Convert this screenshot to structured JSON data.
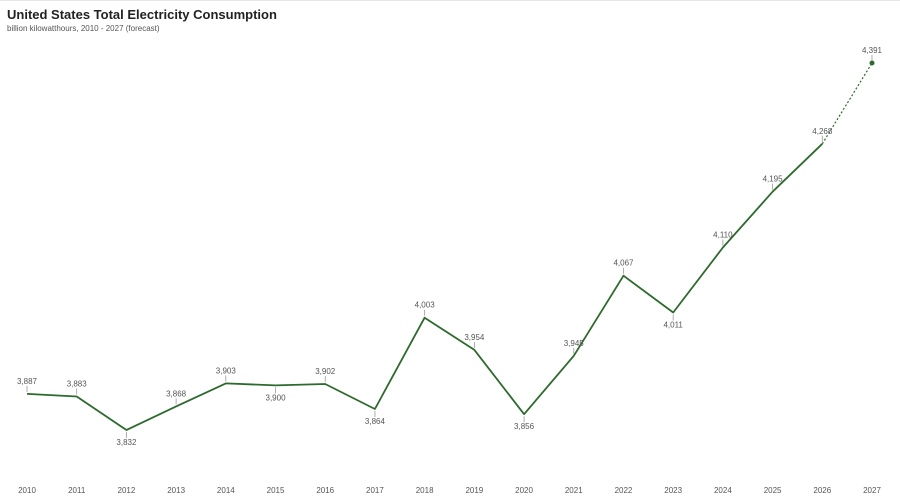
{
  "chart_data": {
    "type": "line",
    "title": "United States Total Electricity Consumption",
    "subtitle": "billion kilowatthours, 2010 - 2027 (forecast)",
    "xlabel": "",
    "ylabel": "",
    "x": [
      "2010",
      "2011",
      "2012",
      "2013",
      "2014",
      "2015",
      "2016",
      "2017",
      "2018",
      "2019",
      "2020",
      "2021",
      "2022",
      "2023",
      "2024",
      "2025",
      "2026",
      "2027"
    ],
    "values": [
      3887,
      3883,
      3832,
      3868,
      3903,
      3900,
      3902,
      3864,
      4003,
      3954,
      3856,
      3945,
      4067,
      4011,
      4110,
      4195,
      4268,
      4391
    ],
    "data_labels": [
      "3,887",
      "3,883",
      "3,832",
      "3,868",
      "3,903",
      "3,900",
      "3,902",
      "3,864",
      "4,003",
      "3,954",
      "3,856",
      "3,945",
      "4,067",
      "4,011",
      "4,110",
      "4,195",
      "4,268",
      "4,391"
    ],
    "label_position": [
      "above",
      "above",
      "below",
      "above",
      "above",
      "below",
      "above",
      "below",
      "above",
      "above",
      "below",
      "above",
      "above",
      "below",
      "above",
      "above",
      "above",
      "above"
    ],
    "forecast_from_index": 16,
    "ylim": [
      3832,
      4391
    ],
    "grid": false,
    "legend": "none",
    "colors": {
      "line": "#2d6a2d",
      "marker": "#2d6a2d",
      "label": "#555555",
      "title": "#222222"
    }
  }
}
